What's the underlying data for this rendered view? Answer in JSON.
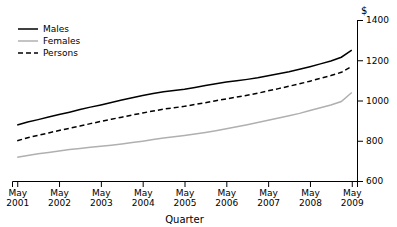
{
  "chart_data": {
    "type": "line",
    "x_label": "Quarter",
    "annotations": [
      "$"
    ],
    "categories": [
      "May\n2001",
      null,
      null,
      null,
      "May\n2002",
      null,
      null,
      null,
      "May\n2003",
      null,
      null,
      null,
      "May\n2004",
      null,
      null,
      null,
      "May\n2005",
      null,
      null,
      null,
      "May\n2006",
      null,
      null,
      null,
      "May\n2007",
      null,
      null,
      null,
      "May\n2008",
      null,
      null,
      null,
      "May\n2009"
    ],
    "series": [
      {
        "name": "Males",
        "color": "#000000",
        "line_style": "solid",
        "values": [
          878,
          893,
          905,
          918,
          930,
          942,
          955,
          967,
          978,
          990,
          1002,
          1014,
          1025,
          1035,
          1044,
          1050,
          1056,
          1065,
          1074,
          1083,
          1092,
          1098,
          1105,
          1113,
          1123,
          1133,
          1143,
          1155,
          1168,
          1182,
          1196,
          1215,
          1250
        ]
      },
      {
        "name": "Females",
        "color": "#b0b0b0",
        "line_style": "solid",
        "values": [
          718,
          727,
          735,
          742,
          749,
          756,
          762,
          768,
          773,
          778,
          784,
          791,
          798,
          806,
          814,
          820,
          826,
          833,
          841,
          850,
          860,
          870,
          880,
          891,
          902,
          913,
          924,
          936,
          950,
          964,
          978,
          995,
          1040
        ]
      },
      {
        "name": "Persons",
        "color": "#000000",
        "line_style": "dashed",
        "values": [
          800,
          815,
          827,
          839,
          851,
          862,
          873,
          885,
          896,
          907,
          917,
          928,
          938,
          948,
          957,
          964,
          971,
          980,
          989,
          999,
          1008,
          1017,
          1026,
          1036,
          1048,
          1059,
          1071,
          1083,
          1096,
          1110,
          1124,
          1140,
          1170
        ]
      }
    ],
    "ylim": [
      600,
      1400
    ],
    "yticks": [
      600,
      800,
      1000,
      1200,
      1400
    ],
    "grid": false,
    "legend": "upper left"
  }
}
